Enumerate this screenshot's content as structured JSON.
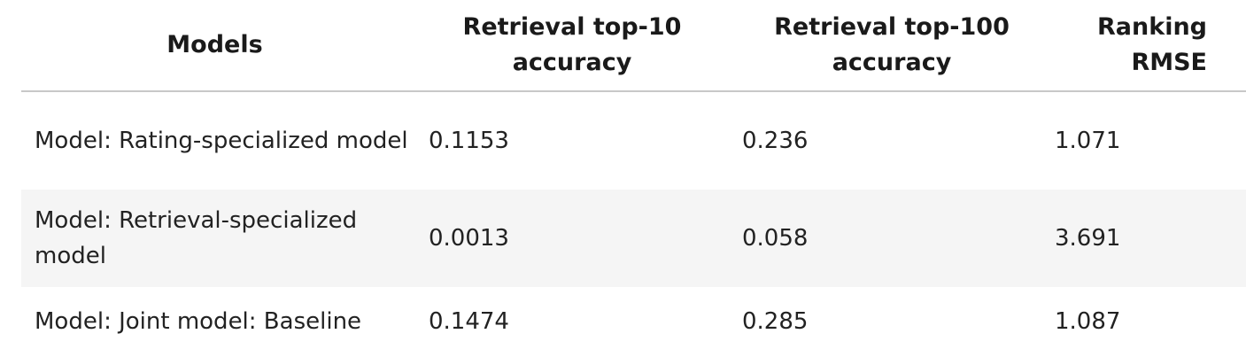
{
  "table": {
    "headers": [
      "Models",
      "Retrieval top-10 accuracy",
      "Retrieval top-100 accuracy",
      "Ranking RMSE"
    ],
    "rows": [
      [
        "Model: Rating-specialized model",
        "0.1153",
        "0.236",
        "1.071"
      ],
      [
        "Model: Retrieval-specialized model",
        "0.0013",
        "0.058",
        "3.691"
      ],
      [
        "Model: Joint model: Baseline",
        "0.1474",
        "0.285",
        "1.087"
      ]
    ]
  },
  "colors": {
    "stripe": "#f5f5f5",
    "header_rule": "#c8c8c8",
    "text": "#222222"
  }
}
